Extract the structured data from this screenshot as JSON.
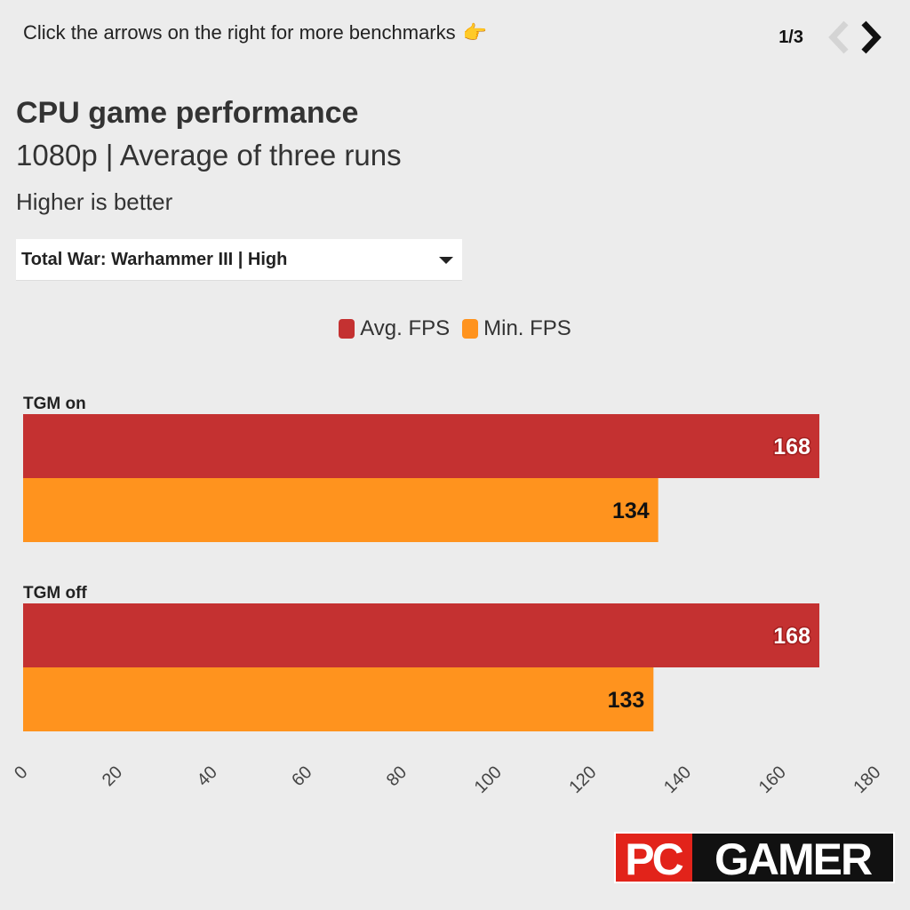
{
  "hint": {
    "text": "Click the arrows on the right for more benchmarks",
    "emoji": "👉"
  },
  "pager": {
    "current": "1/3",
    "prev_icon": "chevron-left-icon",
    "next_icon": "chevron-right-icon"
  },
  "header": {
    "title": "CPU game performance",
    "subtitle": "1080p | Average of three runs",
    "note": "Higher is better"
  },
  "selector": {
    "selected": "Total War: Warhammer III | High",
    "icon": "caret-down-icon"
  },
  "logo": {
    "text_left": "PC",
    "text_right": "GAMER",
    "colors": {
      "left_bg": "#e2231a",
      "right_bg": "#111111"
    }
  },
  "colors": {
    "background": "#ececec",
    "avg": "#c43131",
    "min": "#ff931e",
    "pager_disabled": "#d0d0d0",
    "pager_active": "#111111"
  },
  "chart_data": {
    "type": "bar",
    "orientation": "horizontal",
    "categories": [
      "TGM on",
      "TGM off"
    ],
    "series": [
      {
        "name": "Avg. FPS",
        "color": "#c43131",
        "values": [
          168,
          168
        ]
      },
      {
        "name": "Min. FPS",
        "color": "#ff931e",
        "values": [
          134,
          133
        ]
      }
    ],
    "xlim": [
      0,
      180
    ],
    "xticks": [
      0,
      20,
      40,
      60,
      80,
      100,
      120,
      140,
      160,
      180
    ],
    "grid": false,
    "legend_position": "top-center",
    "title": "CPU game performance",
    "subtitle": "1080p | Average of three runs"
  }
}
